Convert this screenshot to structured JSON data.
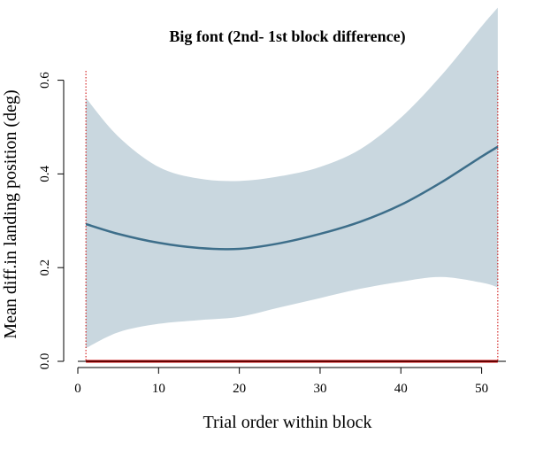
{
  "chart_data": {
    "type": "line",
    "title": "Big font (2nd- 1st block difference)",
    "xlabel": "Trial order within block",
    "ylabel": "Mean diff.in landing position (deg)",
    "xlim": [
      0,
      53
    ],
    "ylim": [
      0,
      0.62
    ],
    "x_ticks": [
      0,
      10,
      20,
      30,
      40,
      50
    ],
    "x_tick_labels": [
      "0",
      "10",
      "20",
      "30",
      "40",
      "50"
    ],
    "y_ticks": [
      0.0,
      0.2,
      0.4,
      0.6
    ],
    "y_tick_labels": [
      "0.0",
      "0.2",
      "0.4",
      "0.6"
    ],
    "grid": false,
    "series": [
      {
        "x": [
          1,
          5,
          10,
          15,
          20,
          25,
          30,
          35,
          40,
          45,
          50,
          52
        ],
        "y": [
          0.293,
          0.272,
          0.253,
          0.242,
          0.24,
          0.252,
          0.272,
          0.298,
          0.334,
          0.382,
          0.437,
          0.458
        ],
        "lower": [
          0.028,
          0.062,
          0.08,
          0.088,
          0.095,
          0.115,
          0.135,
          0.155,
          0.17,
          0.18,
          0.168,
          0.158
        ],
        "upper": [
          0.562,
          0.48,
          0.415,
          0.39,
          0.385,
          0.395,
          0.415,
          0.453,
          0.52,
          0.61,
          0.715,
          0.755
        ]
      }
    ],
    "reference_lines": {
      "vertical_x": [
        1,
        52
      ],
      "horizontal_y": 0
    },
    "colors": {
      "line": "#3d6e8a",
      "band": "#c9d7df",
      "reference": "#cc0000",
      "axis": "#000000"
    }
  }
}
